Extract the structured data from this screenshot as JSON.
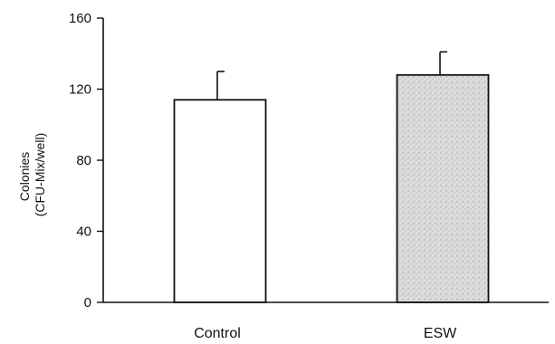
{
  "chart_data": {
    "type": "bar",
    "categories": [
      "Control",
      "ESW"
    ],
    "values": [
      114,
      128
    ],
    "errors": [
      16,
      13
    ],
    "ylabel_lines": [
      "Colonies",
      "(CFU-Mix/well)"
    ],
    "xlabel": "",
    "ylim": [
      0,
      160
    ],
    "yticks": [
      0,
      40,
      80,
      120,
      160
    ],
    "ytick_labels": [
      "0",
      "40",
      "80",
      "120",
      "160"
    ],
    "grid": false,
    "legend": "none",
    "bar_fills": [
      "#ffffff",
      "#d8d8d8"
    ],
    "stroke_color": "#111111"
  }
}
